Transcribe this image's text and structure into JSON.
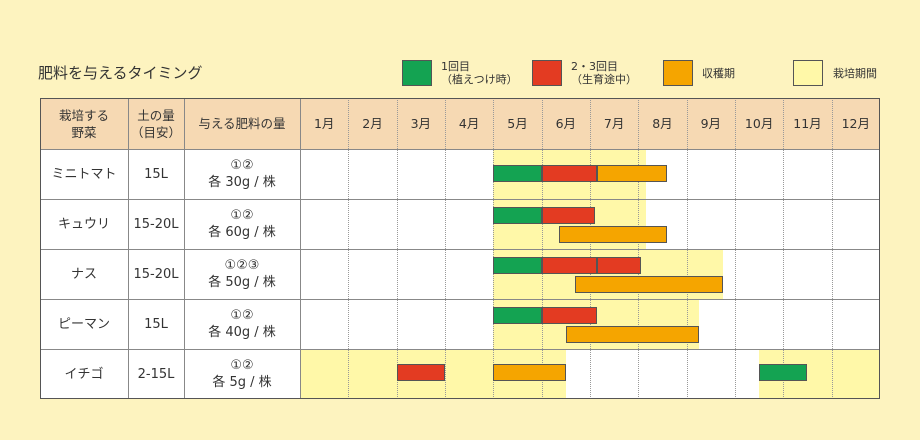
{
  "title": "肥料を与えるタイミング",
  "legend": [
    {
      "key": "first",
      "label_lines": [
        "1回目",
        "（植えつけ時）"
      ],
      "color": "#14a352",
      "icon": "green-square"
    },
    {
      "key": "second",
      "label_lines": [
        "2・3回目",
        "（生育途中）"
      ],
      "color": "#e33b22",
      "icon": "red-square"
    },
    {
      "key": "harvest",
      "label_lines": [
        "収穫期"
      ],
      "color": "#f5a500",
      "icon": "orange-square"
    },
    {
      "key": "growing",
      "label_lines": [
        "栽培期間"
      ],
      "color": "#fff8a8",
      "icon": "yellow-square"
    }
  ],
  "headers": {
    "vegetable": [
      "栽培する",
      "野菜"
    ],
    "soil": [
      "土の量",
      "（目安）"
    ],
    "fertilizer": "与える肥料の量"
  },
  "colors": {
    "header_bg": "#f6d9b3",
    "page_bg": "#fdf3bf",
    "border": "#555555"
  },
  "chart_data": {
    "type": "table",
    "months": [
      "1月",
      "2月",
      "3月",
      "4月",
      "5月",
      "6月",
      "7月",
      "8月",
      "9月",
      "10月",
      "11月",
      "12月"
    ],
    "rows": [
      {
        "vegetable": "ミニトマト",
        "soil": "15L",
        "fert_top": "①②",
        "fert_amount": "各 30g / 株",
        "growing": [
          [
            4.0,
            7.15
          ]
        ],
        "bars": [
          {
            "kind": "first",
            "start": 4.0,
            "end": 5.0
          },
          {
            "kind": "second",
            "start": 5.0,
            "end": 6.15
          },
          {
            "kind": "harvest",
            "start": 6.15,
            "end": 7.6
          }
        ]
      },
      {
        "vegetable": "キュウリ",
        "soil": "15-20L",
        "fert_top": "①②",
        "fert_amount": "各 60g / 株",
        "growing": [
          [
            4.0,
            7.15
          ]
        ],
        "bars": [
          {
            "kind": "first",
            "start": 4.0,
            "end": 5.0
          },
          {
            "kind": "second",
            "start": 5.0,
            "end": 6.1
          },
          {
            "kind": "harvest",
            "start": 5.35,
            "end": 7.6
          }
        ]
      },
      {
        "vegetable": "ナス",
        "soil": "15-20L",
        "fert_top": "①②③",
        "fert_amount": "各 50g / 株",
        "growing": [
          [
            4.0,
            8.75
          ]
        ],
        "bars": [
          {
            "kind": "first",
            "start": 4.0,
            "end": 5.0
          },
          {
            "kind": "second",
            "start": 5.0,
            "end": 6.15
          },
          {
            "kind": "second",
            "start": 6.15,
            "end": 7.05
          },
          {
            "kind": "harvest",
            "start": 5.7,
            "end": 8.75
          }
        ]
      },
      {
        "vegetable": "ピーマン",
        "soil": "15L",
        "fert_top": "①②",
        "fert_amount": "各 40g / 株",
        "growing": [
          [
            4.0,
            8.25
          ]
        ],
        "bars": [
          {
            "kind": "first",
            "start": 4.0,
            "end": 5.0
          },
          {
            "kind": "second",
            "start": 5.0,
            "end": 6.15
          },
          {
            "kind": "harvest",
            "start": 5.5,
            "end": 8.25
          }
        ]
      },
      {
        "vegetable": "イチゴ",
        "soil": "2-15L",
        "fert_top": "①②",
        "fert_amount": "各 5g / 株",
        "growing": [
          [
            0.0,
            5.5
          ],
          [
            9.5,
            12.0
          ]
        ],
        "bars": [
          {
            "kind": "second",
            "start": 2.0,
            "end": 3.0
          },
          {
            "kind": "harvest",
            "start": 4.0,
            "end": 5.5
          },
          {
            "kind": "first",
            "start": 9.5,
            "end": 10.5
          }
        ]
      }
    ]
  }
}
